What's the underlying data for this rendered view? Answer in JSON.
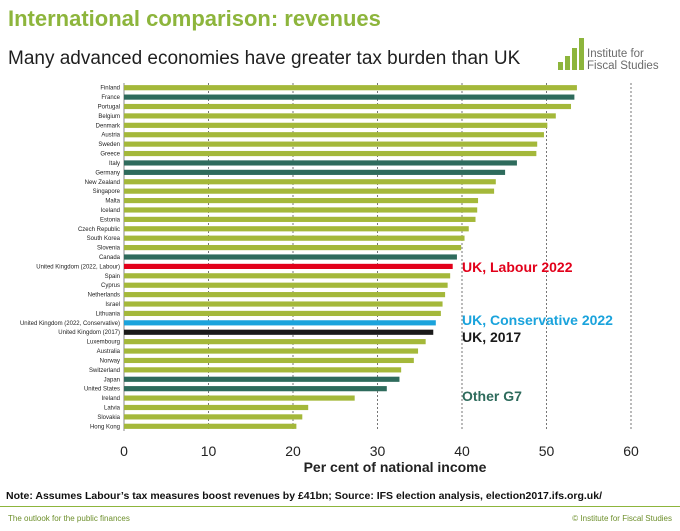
{
  "slide": {
    "title": "International comparison: revenues",
    "subtitle": "Many advanced economies have greater tax burden than UK",
    "logo_line1": "Institute for",
    "logo_line2": "Fiscal Studies",
    "note": "Note: Assumes Labour’s tax measures boost revenues by £41bn; Source: IFS election analysis, election2017.ifs.org.uk/",
    "footer_left": "The outlook for the public finances",
    "footer_right": "© Institute for Fiscal Studies"
  },
  "colors": {
    "other": "#a4b83a",
    "g7": "#2e6b5c",
    "uk_labour": "#e2001a",
    "uk_conservative": "#1aa3dc",
    "uk_2017": "#1a1a1a",
    "title": "#8db53c"
  },
  "chart_data": {
    "type": "bar",
    "orientation": "horizontal",
    "xlabel": "Per cent of national income",
    "xlim": [
      0,
      60
    ],
    "xticks": [
      "0",
      "10",
      "20",
      "30",
      "40",
      "50",
      "60"
    ],
    "grid": "vertical dashed",
    "categories": [
      "Finland",
      "France",
      "Portugal",
      "Belgium",
      "Denmark",
      "Austria",
      "Sweden",
      "Greece",
      "Italy",
      "Germany",
      "New Zealand",
      "Singapore",
      "Malta",
      "Iceland",
      "Estonia",
      "Czech Republic",
      "South Korea",
      "Slovenia",
      "Canada",
      "United Kingdom (2022, Labour)",
      "Spain",
      "Cyprus",
      "Netherlands",
      "Israel",
      "Lithuania",
      "United Kingdom (2022, Conservative)",
      "United Kingdom (2017)",
      "Luxembourg",
      "Australia",
      "Norway",
      "Switzerland",
      "Japan",
      "United States",
      "Ireland",
      "Latvia",
      "Slovakia",
      "Hong Kong"
    ],
    "values": [
      53.6,
      53.3,
      52.9,
      51.1,
      50.1,
      49.7,
      48.9,
      48.8,
      46.5,
      45.1,
      44.0,
      43.8,
      41.9,
      41.8,
      41.6,
      40.8,
      40.3,
      39.9,
      39.4,
      38.9,
      38.6,
      38.3,
      38.0,
      37.7,
      37.5,
      36.9,
      36.6,
      35.7,
      34.8,
      34.3,
      32.8,
      32.6,
      31.1,
      27.3,
      21.8,
      21.1,
      20.4
    ],
    "groups": [
      "other",
      "g7",
      "other",
      "other",
      "other",
      "other",
      "other",
      "other",
      "g7",
      "g7",
      "other",
      "other",
      "other",
      "other",
      "other",
      "other",
      "other",
      "other",
      "g7",
      "uk_labour",
      "other",
      "other",
      "other",
      "other",
      "other",
      "uk_conservative",
      "uk_2017",
      "other",
      "other",
      "other",
      "other",
      "g7",
      "g7",
      "other",
      "other",
      "other",
      "other"
    ],
    "annotations": [
      {
        "text": "UK, Labour 2022",
        "category": "United Kingdom (2022, Labour)",
        "group": "uk_labour"
      },
      {
        "text": "UK, Conservative 2022",
        "category": "United Kingdom (2022, Conservative)",
        "group": "uk_conservative"
      },
      {
        "text": "UK, 2017",
        "category": "United Kingdom (2017)",
        "group": "uk_2017"
      },
      {
        "text": "Other G7",
        "category": "Ireland",
        "group": "g7"
      }
    ]
  }
}
